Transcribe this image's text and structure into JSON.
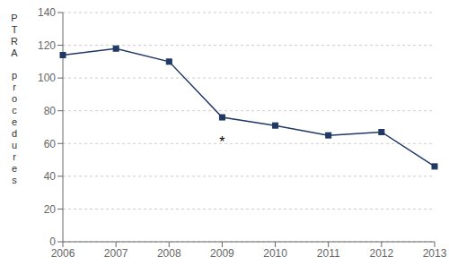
{
  "chart_data": {
    "type": "line",
    "y_label": "PTRA procedures",
    "categories": [
      "2006",
      "2007",
      "2008",
      "2009",
      "2010",
      "2011",
      "2012",
      "2013"
    ],
    "values": [
      114,
      118,
      110,
      76,
      71,
      65,
      67,
      46
    ],
    "color": "#1f3864",
    "marker": "square",
    "ylim": [
      0,
      140
    ],
    "yticks": [
      0,
      20,
      40,
      60,
      80,
      100,
      120,
      140
    ],
    "grid": "y",
    "annotations": [
      {
        "text": "*",
        "x": "2009",
        "y": 67
      }
    ]
  }
}
